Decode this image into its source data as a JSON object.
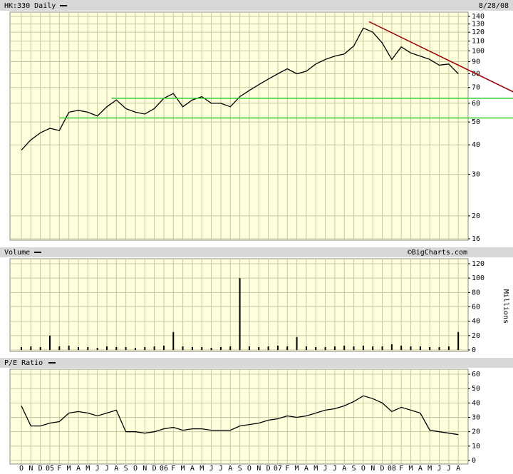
{
  "chart_data": [
    {
      "type": "line",
      "title": "HK:330 Daily",
      "date": "8/28/08",
      "log_scale": true,
      "grid": true,
      "background": "#ffffdd",
      "ylim": [
        16,
        140
      ],
      "yticks": [
        16,
        20,
        30,
        40,
        50,
        60,
        70,
        80,
        90,
        100,
        110,
        120,
        130,
        140
      ],
      "series": [
        {
          "color": "#000000",
          "values": [
            38,
            42,
            45,
            47,
            46,
            55,
            56,
            55,
            53,
            58,
            62,
            57,
            55,
            54,
            57,
            63,
            66,
            58,
            62,
            64,
            60,
            60,
            58,
            64,
            68,
            72,
            76,
            80,
            84,
            80,
            82,
            88,
            92,
            95,
            97,
            105,
            125,
            120,
            108,
            92,
            104,
            98,
            95,
            92,
            87,
            88,
            80
          ]
        }
      ],
      "trendlines": [
        {
          "color": "#33cc33",
          "start": [
            9.5,
            63
          ],
          "end": [
            51.8,
            63
          ]
        },
        {
          "color": "#33cc33",
          "start": [
            4,
            52
          ],
          "end": [
            51.8,
            52
          ]
        },
        {
          "color": "#990000",
          "start": [
            36.6,
            133
          ],
          "end": [
            51.8,
            67
          ]
        }
      ]
    },
    {
      "type": "bar",
      "title": "Volume",
      "credit": "©BigCharts.com",
      "ylabel": "Millions",
      "grid": true,
      "background": "#ffffdd",
      "ylim": [
        0,
        120
      ],
      "yticks": [
        0,
        20,
        40,
        60,
        80,
        100,
        120
      ],
      "color": "#000000",
      "values": [
        4,
        5,
        4,
        20,
        5,
        6,
        4,
        4,
        3,
        5,
        4,
        4,
        3,
        4,
        5,
        6,
        25,
        5,
        4,
        4,
        3,
        4,
        5,
        100,
        5,
        4,
        5,
        6,
        5,
        18,
        5,
        4,
        4,
        5,
        6,
        5,
        6,
        5,
        5,
        8,
        6,
        5,
        5,
        4,
        4,
        5,
        25
      ]
    },
    {
      "type": "line",
      "title": "P/E Ratio",
      "grid": true,
      "background": "#ffffdd",
      "ylim": [
        0,
        60
      ],
      "yticks": [
        0,
        10,
        20,
        30,
        40,
        50,
        60
      ],
      "categories": [
        "O",
        "N",
        "D",
        "05",
        "F",
        "M",
        "A",
        "M",
        "J",
        "J",
        "A",
        "S",
        "O",
        "N",
        "D",
        "06",
        "F",
        "M",
        "A",
        "M",
        "J",
        "J",
        "A",
        "S",
        "O",
        "N",
        "D",
        "07",
        "F",
        "M",
        "A",
        "M",
        "J",
        "J",
        "A",
        "S",
        "O",
        "N",
        "D",
        "08",
        "F",
        "M",
        "A",
        "M",
        "J",
        "J",
        "A"
      ],
      "series": [
        {
          "color": "#000000",
          "values": [
            38,
            24,
            24,
            26,
            27,
            33,
            34,
            33,
            31,
            33,
            35,
            20,
            20,
            19,
            20,
            22,
            23,
            21,
            22,
            22,
            21,
            21,
            21,
            24,
            25,
            26,
            28,
            29,
            31,
            30,
            31,
            33,
            35,
            36,
            38,
            41,
            45,
            43,
            40,
            34,
            37,
            35,
            33,
            21,
            20,
            19,
            18
          ]
        }
      ]
    }
  ]
}
